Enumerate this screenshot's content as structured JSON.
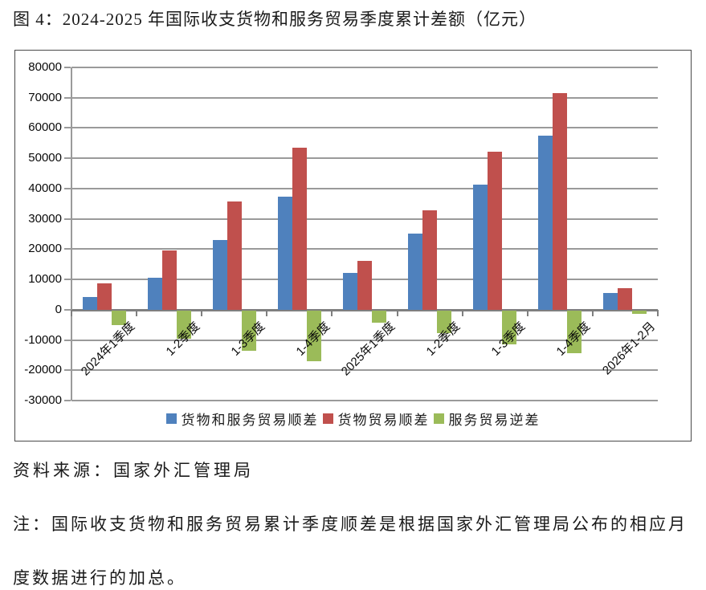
{
  "page": {
    "title": "图 4：2024-2025 年国际收支货物和服务贸易季度累计差额（亿元）",
    "source_line": "资料来源：国家外汇管理局",
    "note_lines": [
      "注：国际收支货物和服务贸易累计季度顺差是根据国家外汇管理局公布的相应月",
      "度数据进行的加总。"
    ]
  },
  "chart_data": {
    "type": "bar",
    "title": "2024-2025 年国际收支货物和服务贸易季度累计差额（亿元）",
    "unit": "亿元",
    "categories": [
      "2024年1季度",
      "1-2季度",
      "1-3季度",
      "1-4季度",
      "2025年1季度",
      "1-2季度",
      "1-3季度",
      "1-4季度",
      "2026年1-2月"
    ],
    "series": [
      {
        "name": "货物和服务贸易顺差",
        "key": "goods-and-services-surplus",
        "color": "#4F81BD",
        "values": [
          4200,
          10500,
          23000,
          37300,
          12200,
          25200,
          41200,
          57400,
          5600
        ]
      },
      {
        "name": "货物贸易顺差",
        "key": "goods-surplus",
        "color": "#C0504D",
        "values": [
          8600,
          19600,
          35800,
          53600,
          16200,
          32800,
          52300,
          71500,
          7000
        ]
      },
      {
        "name": "服务贸易逆差",
        "key": "services-deficit",
        "color": "#9BBB59",
        "values": [
          -4800,
          -9300,
          -13200,
          -16700,
          -4000,
          -7500,
          -11300,
          -14100,
          -1200
        ]
      }
    ],
    "ylim": [
      -30000,
      80000
    ],
    "y_tick_step": 10000,
    "grid": "horizontal",
    "legend_position": "bottom",
    "colors": {
      "gridline": "#9a9a9a",
      "axis": "#7f7f7f",
      "frame": "#4a4a4a"
    }
  }
}
